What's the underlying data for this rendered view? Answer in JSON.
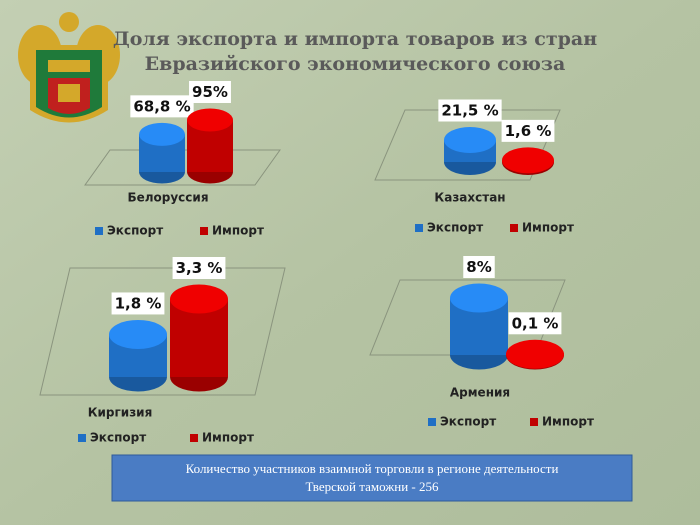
{
  "header": {
    "title": [
      "Доля экспорта и импорта товаров из стран",
      "Евразийского экономического союза"
    ]
  },
  "chart_data": [
    {
      "type": "bar",
      "categories": [
        "Белоруссия"
      ],
      "series": [
        {
          "name": "Экспорт",
          "color": "#1f6fc5",
          "values": [
            68.8
          ],
          "value_labels": [
            "68,8 %"
          ]
        },
        {
          "name": "Импорт",
          "color": "#c00000",
          "values": [
            95
          ],
          "value_labels": [
            "95%"
          ]
        }
      ]
    },
    {
      "type": "bar",
      "categories": [
        "Казахстан"
      ],
      "series": [
        {
          "name": "Экспорт",
          "color": "#1f6fc5",
          "values": [
            21.5
          ],
          "value_labels": [
            "21,5 %"
          ]
        },
        {
          "name": "Импорт",
          "color": "#c00000",
          "values": [
            1.6
          ],
          "value_labels": [
            "1,6 %"
          ]
        }
      ]
    },
    {
      "type": "bar",
      "categories": [
        "Киргизия"
      ],
      "series": [
        {
          "name": "Экспорт",
          "color": "#1f6fc5",
          "values": [
            1.8
          ],
          "value_labels": [
            "1,8 %"
          ]
        },
        {
          "name": "Импорт",
          "color": "#c00000",
          "values": [
            3.3
          ],
          "value_labels": [
            "3,3 %"
          ]
        }
      ]
    },
    {
      "type": "bar",
      "categories": [
        "Армения"
      ],
      "series": [
        {
          "name": "Экспорт",
          "color": "#1f6fc5",
          "values": [
            8
          ],
          "value_labels": [
            "8%"
          ]
        },
        {
          "name": "Импорт",
          "color": "#c00000",
          "values": [
            0.1
          ],
          "value_labels": [
            "0,1 %"
          ]
        }
      ]
    }
  ],
  "footer": {
    "text": [
      "Количество участников взаимной торговли в регионе деятельности",
      "Тверской таможни - 256"
    ]
  }
}
